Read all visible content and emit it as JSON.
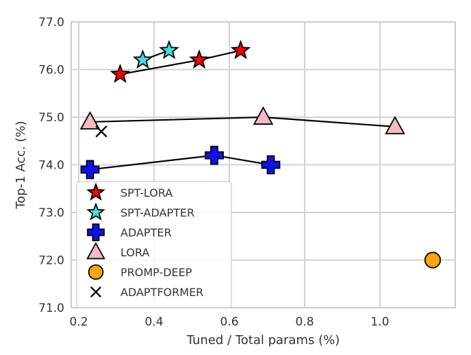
{
  "chart_data": {
    "type": "scatter",
    "title": "",
    "xlabel": "Tuned / Total params (%)",
    "ylabel": "Top-1 Acc. (%)",
    "xlim": [
      0.18,
      1.2
    ],
    "ylim": [
      71.0,
      77.0
    ],
    "xticks": [
      0.2,
      0.4,
      0.6,
      0.8,
      1.0
    ],
    "xtick_labels": [
      "0.2",
      "0.4",
      "0.6",
      "0.8",
      "1.0"
    ],
    "yticks": [
      71.0,
      72.0,
      73.0,
      74.0,
      75.0,
      76.0,
      77.0
    ],
    "ytick_labels": [
      "71.0",
      "72.0",
      "73.0",
      "74.0",
      "75.0",
      "76.0",
      "77.0"
    ],
    "grid": true,
    "legend_position": "lower-left",
    "series": [
      {
        "name": "SPT-LORA",
        "marker": "star",
        "color": "#ff0000",
        "connected": true,
        "points": [
          {
            "x": 0.31,
            "y": 75.9
          },
          {
            "x": 0.52,
            "y": 76.2
          },
          {
            "x": 0.63,
            "y": 76.4
          }
        ]
      },
      {
        "name": "SPT-ADAPTER",
        "marker": "star",
        "color": "#40e0e0",
        "connected": true,
        "points": [
          {
            "x": 0.37,
            "y": 76.2
          },
          {
            "x": 0.44,
            "y": 76.4
          }
        ]
      },
      {
        "name": "ADAPTER",
        "marker": "plus",
        "color": "#1010ee",
        "connected": true,
        "points": [
          {
            "x": 0.23,
            "y": 73.9
          },
          {
            "x": 0.56,
            "y": 74.2
          },
          {
            "x": 0.71,
            "y": 74.0
          }
        ]
      },
      {
        "name": "LORA",
        "marker": "triangle",
        "color": "#f5b8c4",
        "connected": true,
        "points": [
          {
            "x": 0.23,
            "y": 74.9
          },
          {
            "x": 0.69,
            "y": 75.0
          },
          {
            "x": 1.04,
            "y": 74.8
          }
        ]
      },
      {
        "name": "PROMP-DEEP",
        "marker": "circle",
        "color": "#ffa500",
        "connected": false,
        "points": [
          {
            "x": 1.14,
            "y": 72.0
          }
        ]
      },
      {
        "name": "ADAPTFORMER",
        "marker": "x",
        "color": "#000000",
        "connected": false,
        "points": [
          {
            "x": 0.26,
            "y": 74.7
          }
        ]
      }
    ]
  }
}
